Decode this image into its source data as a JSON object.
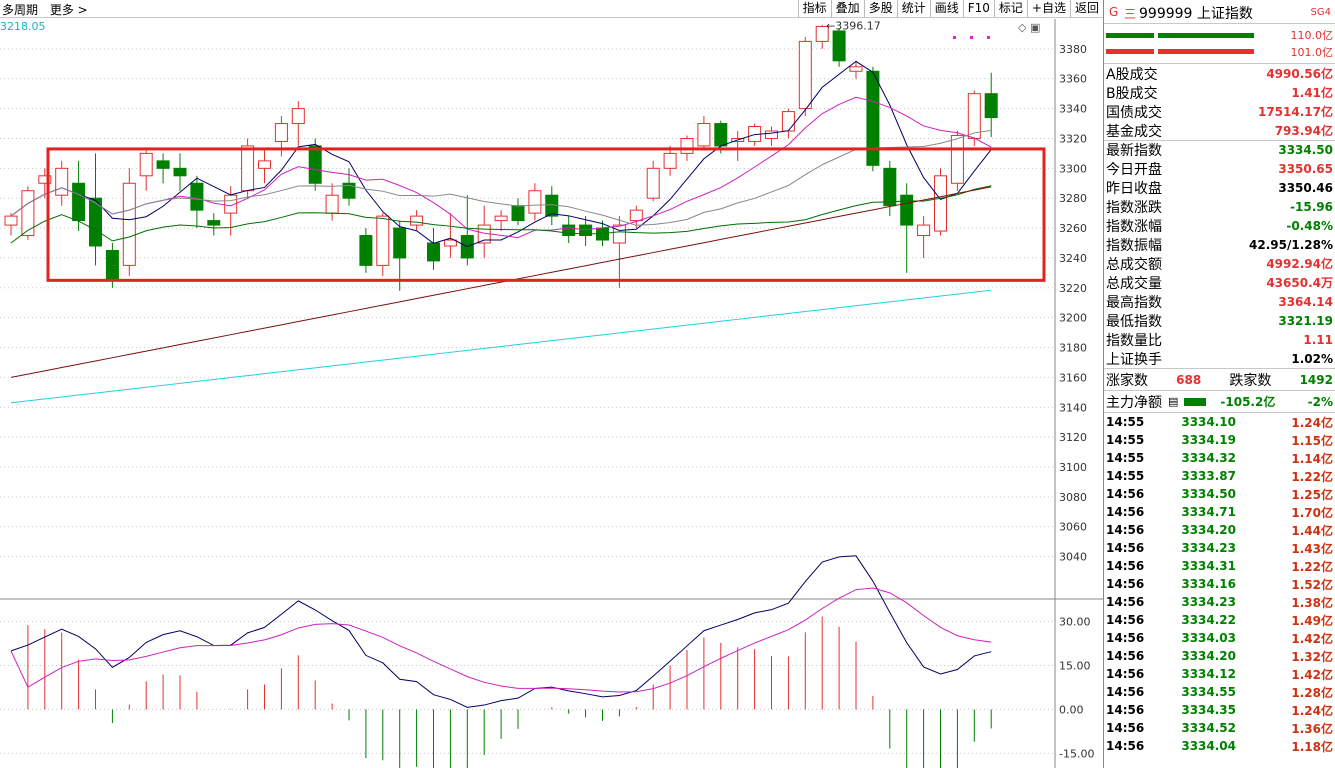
{
  "top_bar": {
    "period_label": "多周期",
    "more_label": "更多 >",
    "cursor_value": "3218.05"
  },
  "toolbar": [
    "指标",
    "叠加",
    "多股",
    "统计",
    "画线",
    "F10",
    "标记",
    "+自选",
    "返回"
  ],
  "header": {
    "g_mark": "G",
    "eq_mark": "三",
    "code": "999999",
    "name": "上证指数",
    "sg_label": "SG4"
  },
  "volume_bars": [
    {
      "label": "110.0亿",
      "color": "#e53030"
    },
    {
      "label": "101.0亿",
      "color": "#e53030"
    }
  ],
  "stats": [
    {
      "label": "A股成交",
      "value": "4990.56亿",
      "color": "#e53030"
    },
    {
      "label": "B股成交",
      "value": "1.41亿",
      "color": "#e53030"
    },
    {
      "label": "国债成交",
      "value": "17514.17亿",
      "color": "#e53030"
    },
    {
      "label": "基金成交",
      "value": "793.94亿",
      "color": "#e53030"
    },
    {
      "label": "最新指数",
      "value": "3334.50",
      "color": "#008000",
      "sep": true
    },
    {
      "label": "今日开盘",
      "value": "3350.65",
      "color": "#e53030"
    },
    {
      "label": "昨日收盘",
      "value": "3350.46",
      "color": "#000000"
    },
    {
      "label": "指数涨跌",
      "value": "-15.96",
      "color": "#008000"
    },
    {
      "label": "指数涨幅",
      "value": "-0.48%",
      "color": "#008000"
    },
    {
      "label": "指数振幅",
      "value": "42.95/1.28%",
      "color": "#000000"
    },
    {
      "label": "总成交额",
      "value": "4992.94亿",
      "color": "#e53030"
    },
    {
      "label": "总成交量",
      "value": "43650.4万",
      "color": "#e53030"
    },
    {
      "label": "最高指数",
      "value": "3364.14",
      "color": "#e53030"
    },
    {
      "label": "最低指数",
      "value": "3321.19",
      "color": "#008000"
    },
    {
      "label": "指数量比",
      "value": "1.11",
      "color": "#e53030"
    },
    {
      "label": "上证换手",
      "value": "1.02%",
      "color": "#000000"
    }
  ],
  "advance": {
    "up_label": "涨家数",
    "up_value": "688",
    "down_label": "跌家数",
    "down_value": "1492"
  },
  "main_force": {
    "label": "主力净额",
    "value": "-105.2亿",
    "pct": "-2%"
  },
  "ticks": [
    {
      "t": "14:55",
      "p": "3334.10",
      "a": "1.24亿"
    },
    {
      "t": "14:55",
      "p": "3334.19",
      "a": "1.15亿"
    },
    {
      "t": "14:55",
      "p": "3334.32",
      "a": "1.14亿"
    },
    {
      "t": "14:55",
      "p": "3333.87",
      "a": "1.22亿"
    },
    {
      "t": "14:56",
      "p": "3334.50",
      "a": "1.25亿"
    },
    {
      "t": "14:56",
      "p": "3334.71",
      "a": "1.70亿"
    },
    {
      "t": "14:56",
      "p": "3334.20",
      "a": "1.44亿"
    },
    {
      "t": "14:56",
      "p": "3334.23",
      "a": "1.43亿"
    },
    {
      "t": "14:56",
      "p": "3334.31",
      "a": "1.22亿"
    },
    {
      "t": "14:56",
      "p": "3334.16",
      "a": "1.52亿"
    },
    {
      "t": "14:56",
      "p": "3334.23",
      "a": "1.38亿"
    },
    {
      "t": "14:56",
      "p": "3334.22",
      "a": "1.49亿"
    },
    {
      "t": "14:56",
      "p": "3334.03",
      "a": "1.42亿"
    },
    {
      "t": "14:56",
      "p": "3334.20",
      "a": "1.32亿"
    },
    {
      "t": "14:56",
      "p": "3334.12",
      "a": "1.42亿"
    },
    {
      "t": "14:56",
      "p": "3334.55",
      "a": "1.28亿"
    },
    {
      "t": "14:56",
      "p": "3334.35",
      "a": "1.24亿"
    },
    {
      "t": "14:56",
      "p": "3334.52",
      "a": "1.36亿"
    },
    {
      "t": "14:56",
      "p": "3334.04",
      "a": "1.18亿"
    }
  ],
  "chart_data": {
    "type": "candlestick",
    "y_ticks": [
      3380,
      3360,
      3340,
      3320,
      3300,
      3280,
      3260,
      3240,
      3220,
      3200,
      3180,
      3160,
      3140,
      3120,
      3100,
      3080,
      3060,
      3040
    ],
    "ylim": [
      3025,
      3400
    ],
    "high_annotation": "3396.17",
    "candles": [
      [
        3262,
        3268,
        3255,
        3270
      ],
      [
        3255,
        3285,
        3252,
        3288
      ],
      [
        3290,
        3295,
        3280,
        3300
      ],
      [
        3282,
        3300,
        3275,
        3305
      ],
      [
        3290,
        3265,
        3258,
        3305
      ],
      [
        3280,
        3248,
        3235,
        3310
      ],
      [
        3245,
        3225,
        3220,
        3250
      ],
      [
        3235,
        3290,
        3228,
        3300
      ],
      [
        3295,
        3310,
        3285,
        3312
      ],
      [
        3305,
        3300,
        3290,
        3310
      ],
      [
        3300,
        3295,
        3285,
        3310
      ],
      [
        3290,
        3272,
        3260,
        3295
      ],
      [
        3265,
        3262,
        3255,
        3270
      ],
      [
        3270,
        3282,
        3255,
        3288
      ],
      [
        3285,
        3315,
        3280,
        3320
      ],
      [
        3300,
        3305,
        3290,
        3312
      ],
      [
        3318,
        3330,
        3308,
        3335
      ],
      [
        3330,
        3340,
        3315,
        3345
      ],
      [
        3315,
        3290,
        3285,
        3320
      ],
      [
        3270,
        3282,
        3265,
        3290
      ],
      [
        3290,
        3280,
        3275,
        3300
      ],
      [
        3255,
        3235,
        3230,
        3260
      ],
      [
        3235,
        3268,
        3228,
        3270
      ],
      [
        3260,
        3240,
        3218,
        3265
      ],
      [
        3262,
        3268,
        3258,
        3272
      ],
      [
        3250,
        3238,
        3232,
        3260
      ],
      [
        3248,
        3252,
        3240,
        3270
      ],
      [
        3255,
        3240,
        3235,
        3282
      ],
      [
        3250,
        3262,
        3240,
        3275
      ],
      [
        3265,
        3268,
        3258,
        3272
      ],
      [
        3275,
        3265,
        3262,
        3280
      ],
      [
        3270,
        3285,
        3265,
        3290
      ],
      [
        3282,
        3268,
        3262,
        3288
      ],
      [
        3262,
        3255,
        3250,
        3268
      ],
      [
        3262,
        3255,
        3248,
        3268
      ],
      [
        3260,
        3252,
        3248,
        3265
      ],
      [
        3250,
        3262,
        3220,
        3268
      ],
      [
        3265,
        3272,
        3260,
        3275
      ],
      [
        3280,
        3300,
        3278,
        3305
      ],
      [
        3300,
        3310,
        3295,
        3315
      ],
      [
        3310,
        3320,
        3305,
        3322
      ],
      [
        3315,
        3330,
        3312,
        3335
      ],
      [
        3330,
        3315,
        3310,
        3332
      ],
      [
        3318,
        3320,
        3305,
        3325
      ],
      [
        3318,
        3328,
        3315,
        3330
      ],
      [
        3320,
        3325,
        3315,
        3328
      ],
      [
        3325,
        3338,
        3320,
        3340
      ],
      [
        3340,
        3385,
        3335,
        3388
      ],
      [
        3385,
        3395,
        3380,
        3396
      ],
      [
        3392,
        3372,
        3368,
        3394
      ],
      [
        3365,
        3368,
        3360,
        3372
      ],
      [
        3365,
        3302,
        3298,
        3368
      ],
      [
        3300,
        3275,
        3268,
        3305
      ],
      [
        3282,
        3262,
        3230,
        3290
      ],
      [
        3255,
        3262,
        3240,
        3268
      ],
      [
        3258,
        3295,
        3255,
        3300
      ],
      [
        3290,
        3322,
        3285,
        3325
      ],
      [
        3320,
        3350,
        3315,
        3352
      ],
      [
        3350,
        3334,
        3321,
        3364
      ]
    ],
    "macd_ticks": [
      30.0,
      15.0,
      0.0,
      -15.0
    ],
    "macd_ylim": [
      -20,
      36
    ]
  }
}
